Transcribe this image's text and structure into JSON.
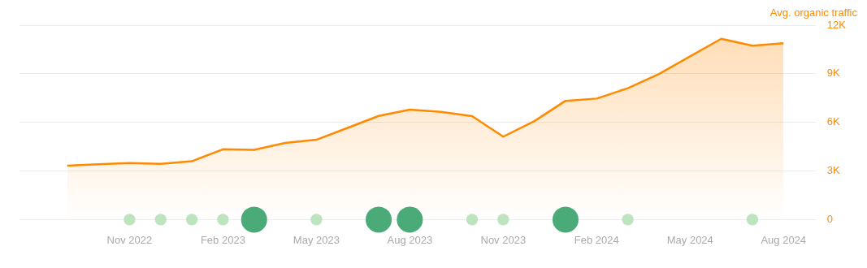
{
  "chart_data": {
    "type": "area",
    "ylabel": "Avg. organic traffic",
    "x": [
      "2022-09",
      "2022-10",
      "2022-11",
      "2022-12",
      "2023-01",
      "2023-02",
      "2023-03",
      "2023-04",
      "2023-05",
      "2023-06",
      "2023-07",
      "2023-08",
      "2023-09",
      "2023-10",
      "2023-11",
      "2023-12",
      "2024-01",
      "2024-02",
      "2024-03",
      "2024-04",
      "2024-05",
      "2024-06",
      "2024-07",
      "2024-08"
    ],
    "series": [
      {
        "color": "#ff8a00",
        "values": [
          3330,
          3410,
          3490,
          3440,
          3600,
          4340,
          4310,
          4730,
          4930,
          5660,
          6400,
          6790,
          6650,
          6390,
          5120,
          6080,
          7330,
          7470,
          8110,
          8990,
          10080,
          11160,
          10730,
          10880
        ]
      },
      {
        "type": "bubble",
        "x": [
          "2022-11",
          "2022-12",
          "2023-01",
          "2023-02",
          "2023-03",
          "2023-05",
          "2023-07",
          "2023-08",
          "2023-10",
          "2023-11",
          "2024-01",
          "2024-03",
          "2024-07"
        ],
        "values": [
          0,
          0,
          0,
          0,
          0,
          0,
          0,
          0,
          0,
          0,
          0,
          0,
          0
        ],
        "sizes": [
          0.2,
          0.2,
          0.2,
          0.2,
          1,
          0.2,
          1,
          1,
          0.2,
          0.2,
          1,
          0.2,
          0.2
        ],
        "colors": [
          "#bde3bf",
          "#bde3bf",
          "#bde3bf",
          "#bde3bf",
          "#4aab78",
          "#bde3bf",
          "#4aab78",
          "#4aab78",
          "#bde3bf",
          "#bde3bf",
          "#4aab78",
          "#bde3bf",
          "#bde3bf"
        ]
      }
    ],
    "xlim": [
      "2022-07-15",
      "2024-09-02"
    ],
    "xticks": [
      {
        "value": "2022-11",
        "label": "Nov 2022"
      },
      {
        "value": "2023-02",
        "label": "Feb 2023"
      },
      {
        "value": "2023-05",
        "label": "May 2023"
      },
      {
        "value": "2023-08",
        "label": "Aug 2023"
      },
      {
        "value": "2023-11",
        "label": "Nov 2023"
      },
      {
        "value": "2024-02",
        "label": "Feb 2024"
      },
      {
        "value": "2024-05",
        "label": "May 2024"
      },
      {
        "value": "2024-08",
        "label": "Aug 2024"
      }
    ],
    "ylim": [
      0,
      12000
    ],
    "yticks": [
      0,
      {
        "value": 3000,
        "label": "3K"
      },
      {
        "value": 6000,
        "label": "6K"
      },
      {
        "value": 9000,
        "label": "9K"
      },
      {
        "value": 12000,
        "label": "12K"
      }
    ],
    "grid": "y",
    "legend": false
  }
}
